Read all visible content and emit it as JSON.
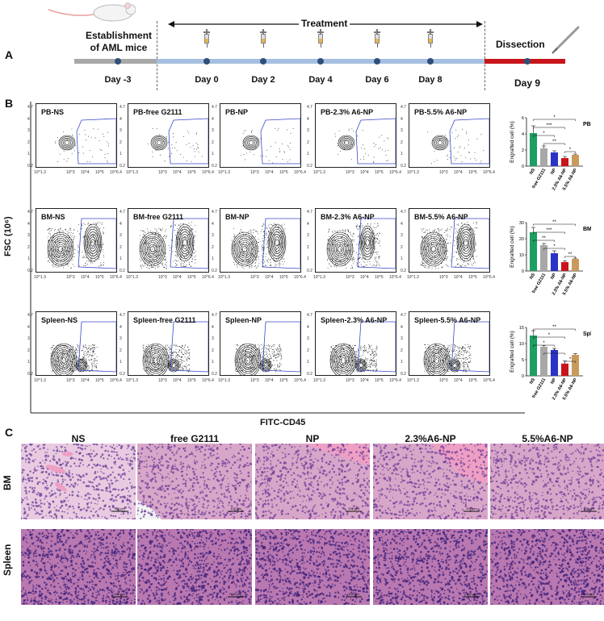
{
  "panels": {
    "A": "A",
    "B": "B",
    "C": "C"
  },
  "timeline": {
    "establishment": "Establishment\nof AML mice",
    "treatment": "Treatment",
    "dissection": "Dissection",
    "days": [
      "Day -3",
      "Day 0",
      "Day 2",
      "Day 4",
      "Day 6",
      "Day 8",
      "Day 9"
    ]
  },
  "flow": {
    "y_axis_label": "FSC (10⁶)",
    "x_axis_label": "FITC-CD45",
    "y_ticks": [
      "4.7",
      "4",
      "3",
      "2",
      "1",
      "0.2"
    ],
    "x_ticks": [
      "10^1.3",
      "10^3",
      "10^4",
      "10^5",
      "10^6.4"
    ],
    "rows": [
      {
        "titles": [
          "PB-NS",
          "PB-free G2111",
          "PB-NP",
          "PB-2.3% A6-NP",
          "PB-5.5% A6-NP"
        ]
      },
      {
        "titles": [
          "BM-NS",
          "BM-free G2111",
          "BM-NP",
          "BM-2.3% A6-NP",
          "BM-5.5% A6-NP"
        ]
      },
      {
        "titles": [
          "Spleen-NS",
          "Spleen-free G2111",
          "Spleen-NP",
          "Spleen-2.3% A6-NP",
          "Spleen-5.5% A6-NP"
        ]
      }
    ]
  },
  "chart_data": [
    {
      "type": "bar",
      "title": "PB",
      "ylabel": "Engrafted cell (%)",
      "categories": [
        "NS",
        "free G2111",
        "NP",
        "2.3% A6-NP",
        "5.5% A6-NP"
      ],
      "values": [
        4.1,
        2.2,
        1.7,
        1.0,
        1.4
      ],
      "errors": [
        0.9,
        0.3,
        0.2,
        0.2,
        0.1
      ],
      "ylim": [
        0,
        6
      ],
      "yticks": [
        "0",
        "2",
        "4",
        "6"
      ],
      "colors": [
        "#1d9e63",
        "#a8a8a8",
        "#2a32c8",
        "#c8151b",
        "#c89a5c"
      ],
      "significance": [
        "*",
        "***",
        "*",
        "**",
        "*"
      ]
    },
    {
      "type": "bar",
      "title": "BM",
      "ylabel": "Engrafted cell (%)",
      "categories": [
        "NS",
        "free G2111",
        "NP",
        "2.3% A6-NP",
        "5.5% A6-NP"
      ],
      "values": [
        24,
        16,
        11,
        5.5,
        7.5
      ],
      "errors": [
        3,
        1,
        1.5,
        0.8,
        0.5
      ],
      "ylim": [
        0,
        30
      ],
      "yticks": [
        "0",
        "10",
        "20",
        "30"
      ],
      "colors": [
        "#1d9e63",
        "#a8a8a8",
        "#2a32c8",
        "#c8151b",
        "#c89a5c"
      ],
      "significance": [
        "**",
        "***",
        "**",
        "*",
        "**"
      ]
    },
    {
      "type": "bar",
      "title": "Spleen",
      "ylabel": "Engrafted cell (%)",
      "categories": [
        "NS",
        "free G2111",
        "NP",
        "2.3% A6-NP",
        "5.5% A6-NP"
      ],
      "values": [
        12.5,
        9,
        8,
        3.8,
        6.5
      ],
      "errors": [
        1.5,
        0.4,
        0.5,
        0.8,
        0.4
      ],
      "ylim": [
        0,
        15
      ],
      "yticks": [
        "0",
        "5",
        "10",
        "15"
      ],
      "colors": [
        "#1d9e63",
        "#a8a8a8",
        "#2a32c8",
        "#c8151b",
        "#c89a5c"
      ],
      "significance": [
        "**",
        "*",
        "*",
        "*",
        "*"
      ]
    }
  ],
  "histology": {
    "columns": [
      "NS",
      "free G2111",
      "NP",
      "2.3%A6-NP",
      "5.5%A6-NP"
    ],
    "rows": [
      "BM",
      "Spleen"
    ],
    "scale": "100 μm"
  }
}
